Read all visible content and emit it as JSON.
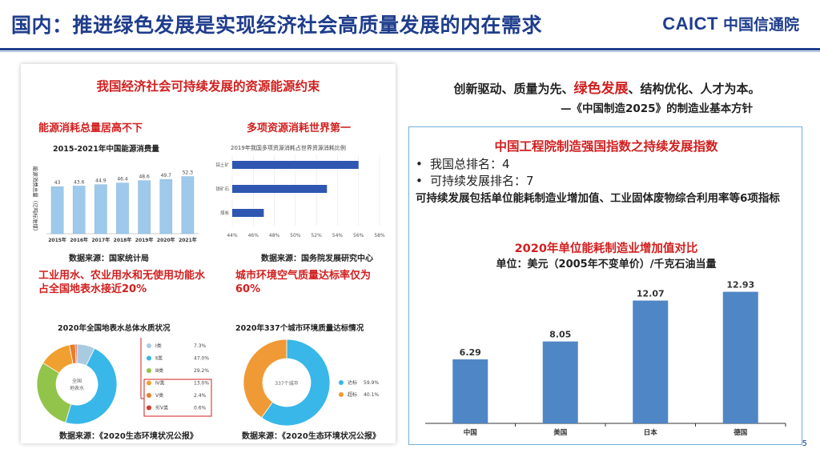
{
  "header": {
    "title": "国内：推进绿色发展是实现经济社会高质量发展的内在需求",
    "logo_latin": "CAICT",
    "logo_cn": "中国信通院"
  },
  "left": {
    "heading": "我国经济社会可持续发展的资源能源约束",
    "energy": {
      "subtitle": "能源消耗总量居高不下",
      "chart_title": "2015-2021年中国能源消费量",
      "ylabel": "能源消费总量（亿吨标准煤）",
      "source": "数据来源：国家统计局"
    },
    "resources": {
      "subtitle": "多项资源消耗世界第一",
      "chart_title": "2019年我国多项资源消耗占世界资源消耗比例",
      "source": "数据来源：国务院发展研究中心"
    },
    "water": {
      "subtitle": "工业用水、农业用水和无使用功能水占全国地表水接近20%",
      "chart_title": "2020年全国地表水总体水质状况",
      "center_label": "全国地表水",
      "source": "数据来源：《2020生态环境状况公报》"
    },
    "air": {
      "subtitle": "城市环境空气质量达标率仅为60%",
      "chart_title": "2020年337个城市环境质量达标情况",
      "center_label": "337个城市",
      "source": "数据来源：《2020生态环境状况公报》"
    }
  },
  "right": {
    "line1_a": "创新驱动、质量为先、",
    "line1_b": "绿色发展",
    "line1_c": "、结构优化、人才为本。",
    "quote": "—《中国制造2025》的制造业基本方针",
    "box_title": "中国工程院制造强国指数之持续发展指数",
    "bullets": [
      "我国总排名：4",
      "可持续发展排名：7"
    ],
    "bullet_mark": "•",
    "para": "可持续发展包括单位能耗制造业增加值、工业固体废物综合利用率等6项指标",
    "chart_title": "2020年单位能耗制造业增加值对比",
    "unit": "单位：美元（2005年不变单价）/千克石油当量"
  },
  "page_number": "5",
  "colors": {
    "brand": "#1f3d8c",
    "accent_red": "#d21f1f",
    "bar_blue": "#4f86c6",
    "bar_light": "#9ec9ea",
    "donut_orange": "#f09a35",
    "donut_blue": "#38b7e8"
  },
  "chart_data": [
    {
      "type": "bar",
      "title": "2015-2021年中国能源消费量",
      "ylabel": "能源消费总量（亿吨标准煤）",
      "categories": [
        "2015年",
        "2016年",
        "2017年",
        "2018年",
        "2019年",
        "2020年",
        "2021年"
      ],
      "values": [
        43,
        43.6,
        44.9,
        46.4,
        48.6,
        49.7,
        52.3
      ]
    },
    {
      "type": "bar",
      "orientation": "horizontal",
      "title": "2019年我国多项资源消耗占世界资源消耗比例",
      "categories": [
        "铝土矿",
        "铁矿石",
        "煤炭"
      ],
      "values": [
        56,
        53,
        47
      ],
      "xlim": [
        44,
        58
      ],
      "xticks": [
        "44%",
        "46%",
        "48%",
        "50%",
        "52%",
        "54%",
        "56%",
        "58%"
      ]
    },
    {
      "type": "pie",
      "title": "2020年全国地表水总体水质状况",
      "labels": [
        "Ⅰ类",
        "Ⅱ类",
        "Ⅲ类",
        "Ⅳ类",
        "Ⅴ类",
        "劣Ⅴ类"
      ],
      "value_labels": [
        "7.3%",
        "47.0%",
        "29.2%",
        "13.0%",
        "2.4%",
        "0.6%"
      ],
      "values": [
        7.3,
        47.0,
        29.2,
        13.0,
        2.4,
        0.6
      ],
      "colors": [
        "#a9cbe0",
        "#38b7e8",
        "#92c34b",
        "#f0a030",
        "#e87c2a",
        "#d23a2a"
      ]
    },
    {
      "type": "pie",
      "title": "2020年337个城市环境质量达标情况",
      "labels": [
        "达标",
        "超标"
      ],
      "value_labels": [
        "59.9%",
        "40.1%"
      ],
      "values": [
        59.9,
        40.1
      ],
      "colors": [
        "#38b7e8",
        "#f09a35"
      ]
    },
    {
      "type": "bar",
      "title": "2020年单位能耗制造业增加值对比",
      "categories": [
        "中国",
        "美国",
        "日本",
        "德国"
      ],
      "values": [
        6.29,
        8.05,
        12.07,
        12.93
      ],
      "value_labels": [
        "6.29",
        "8.05",
        "12.07",
        "12.93"
      ]
    }
  ]
}
